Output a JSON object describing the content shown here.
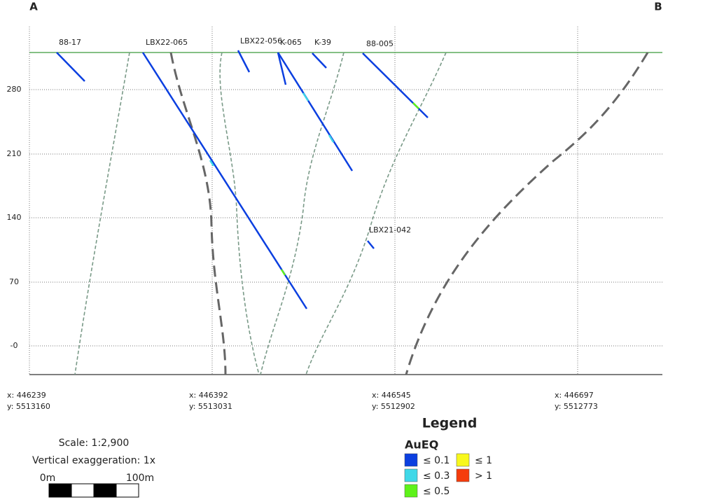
{
  "corners": {
    "left": "A",
    "right": "B"
  },
  "elevation_labels": [
    "280",
    "210",
    "140",
    "70",
    "-0"
  ],
  "coordinates": [
    {
      "x": "x: 446239",
      "y": "y: 5513160"
    },
    {
      "x": "x: 446392",
      "y": "y: 5513031"
    },
    {
      "x": "x: 446545",
      "y": "y: 5512902"
    },
    {
      "x": "x: 446697",
      "y": "y: 5512773"
    }
  ],
  "drill_holes": [
    "88-17",
    "LBX22-065",
    "LBX22-056",
    "K-065",
    "K-39",
    "88-005",
    "LBX21-042"
  ],
  "scale": {
    "ratio": "Scale: 1:2,900",
    "exaggeration": "Vertical exaggeration: 1x",
    "start": "0m",
    "end": "100m"
  },
  "legend": {
    "title": "Legend",
    "variable": "AuEQ",
    "items": [
      {
        "label": "≤ 0.1",
        "color": "#0b3fe0"
      },
      {
        "label": "≤ 0.3",
        "color": "#3fd8e8"
      },
      {
        "label": "≤ 0.5",
        "color": "#5ef21a"
      },
      {
        "label": "≤ 1",
        "color": "#f8f81c"
      },
      {
        "label": "> 1",
        "color": "#f53c0c"
      }
    ]
  }
}
